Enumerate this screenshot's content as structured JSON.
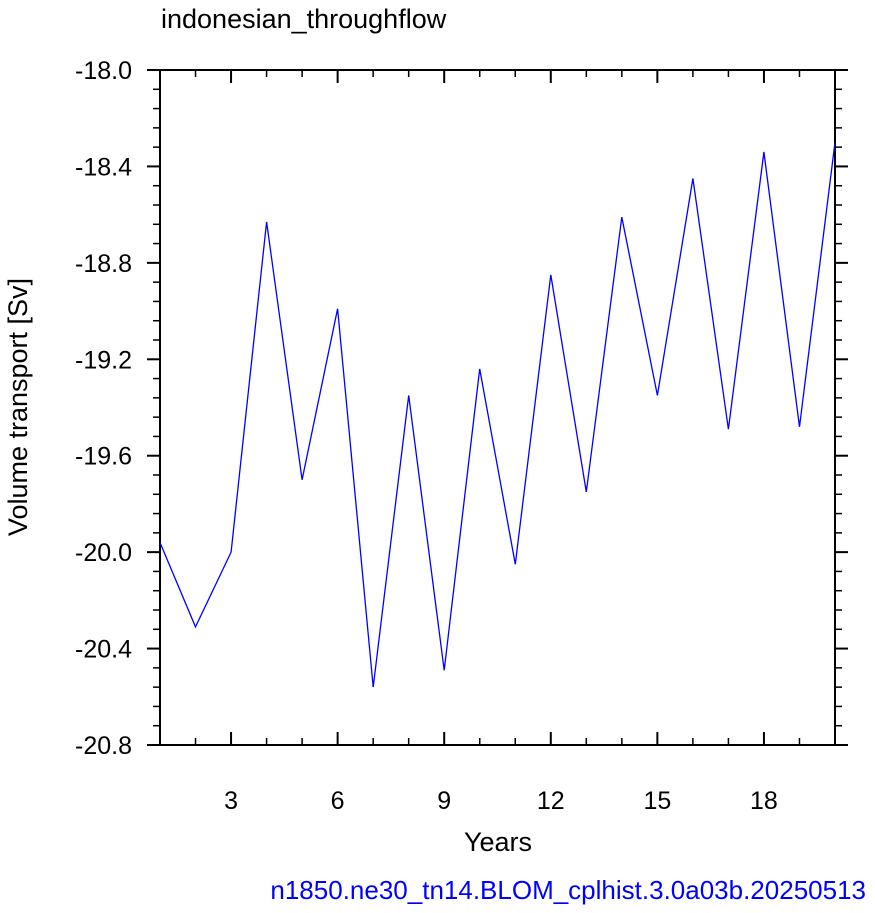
{
  "chart_data": {
    "type": "line",
    "title": "indonesian_throughflow",
    "xlabel": "Years",
    "ylabel": "Volume transport [Sv]",
    "caption": "n1850.ne30_tn14.BLOM_cplhist.3.0a03b.20250513",
    "xlim": [
      1,
      20
    ],
    "ylim": [
      -20.8,
      -18.0
    ],
    "x_ticks": [
      3,
      6,
      9,
      12,
      15,
      18
    ],
    "x_tick_labels": [
      "3",
      "6",
      "9",
      "12",
      "15",
      "18"
    ],
    "y_ticks": [
      -18.0,
      -18.4,
      -18.8,
      -19.2,
      -19.6,
      -20.0,
      -20.4,
      -20.8
    ],
    "y_tick_labels": [
      "-18.0",
      "-18.4",
      "-18.8",
      "-19.2",
      "-19.6",
      "-20.0",
      "-20.4",
      "-20.8"
    ],
    "grid": false,
    "series": [
      {
        "x": [
          1,
          2,
          3,
          4,
          5,
          6,
          7,
          8,
          9,
          10,
          11,
          12,
          13,
          14,
          15,
          16,
          17,
          18,
          19,
          20
        ],
        "values": [
          -19.96,
          -20.31,
          -20.0,
          -18.63,
          -19.7,
          -18.99,
          -20.56,
          -19.35,
          -20.49,
          -19.24,
          -20.05,
          -18.85,
          -19.75,
          -18.61,
          -19.35,
          -18.45,
          -19.49,
          -18.34,
          -19.48,
          -18.3
        ],
        "color": "#0000ff"
      }
    ]
  }
}
